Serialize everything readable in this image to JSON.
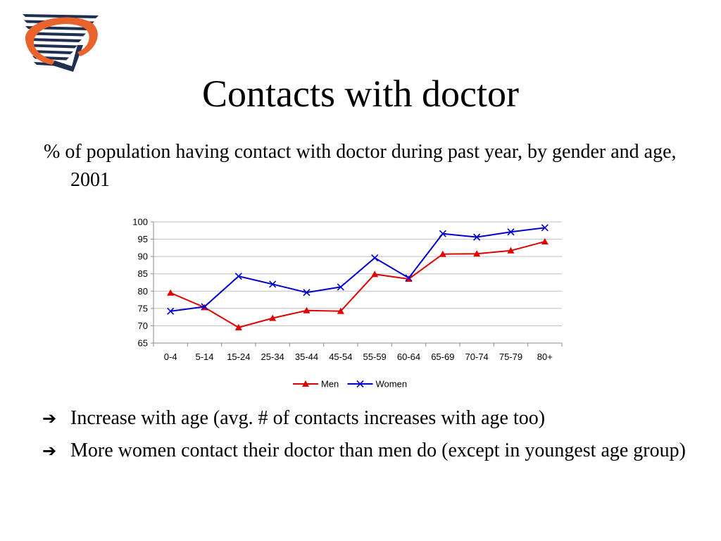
{
  "slide": {
    "title": "Contacts with doctor",
    "subtitle": "% of population having contact with doctor during past year, by gender and age, 2001",
    "bullets": [
      {
        "icon": "right-arrow-icon",
        "text": "Increase with age (avg. # of contacts increases with age too)"
      },
      {
        "icon": "right-arrow-icon",
        "text": "More women contact their doctor than men do (except in youngest age group)"
      }
    ]
  },
  "colors": {
    "men": "#e00000",
    "women": "#0000cc",
    "logo_orange": "#e8642c",
    "logo_navy": "#1e2f4f"
  },
  "chart_data": {
    "type": "line",
    "categories": [
      "0-4",
      "5-14",
      "15-24",
      "25-34",
      "35-44",
      "45-54",
      "55-59",
      "60-64",
      "65-69",
      "70-74",
      "75-79",
      "80+"
    ],
    "series": [
      {
        "name": "Men",
        "marker": "triangle",
        "values": [
          79.5,
          75.3,
          69.5,
          72.2,
          74.4,
          74.2,
          84.9,
          83.5,
          90.7,
          90.8,
          91.7,
          94.3
        ]
      },
      {
        "name": "Women",
        "marker": "x",
        "values": [
          74.2,
          75.5,
          84.3,
          82.0,
          79.6,
          81.2,
          89.6,
          83.8,
          96.6,
          95.6,
          97.1,
          98.3
        ]
      }
    ],
    "ylim": [
      65,
      100
    ],
    "yticks": [
      65,
      70,
      75,
      80,
      85,
      90,
      95,
      100
    ],
    "grid": true,
    "legend": "bottom"
  }
}
